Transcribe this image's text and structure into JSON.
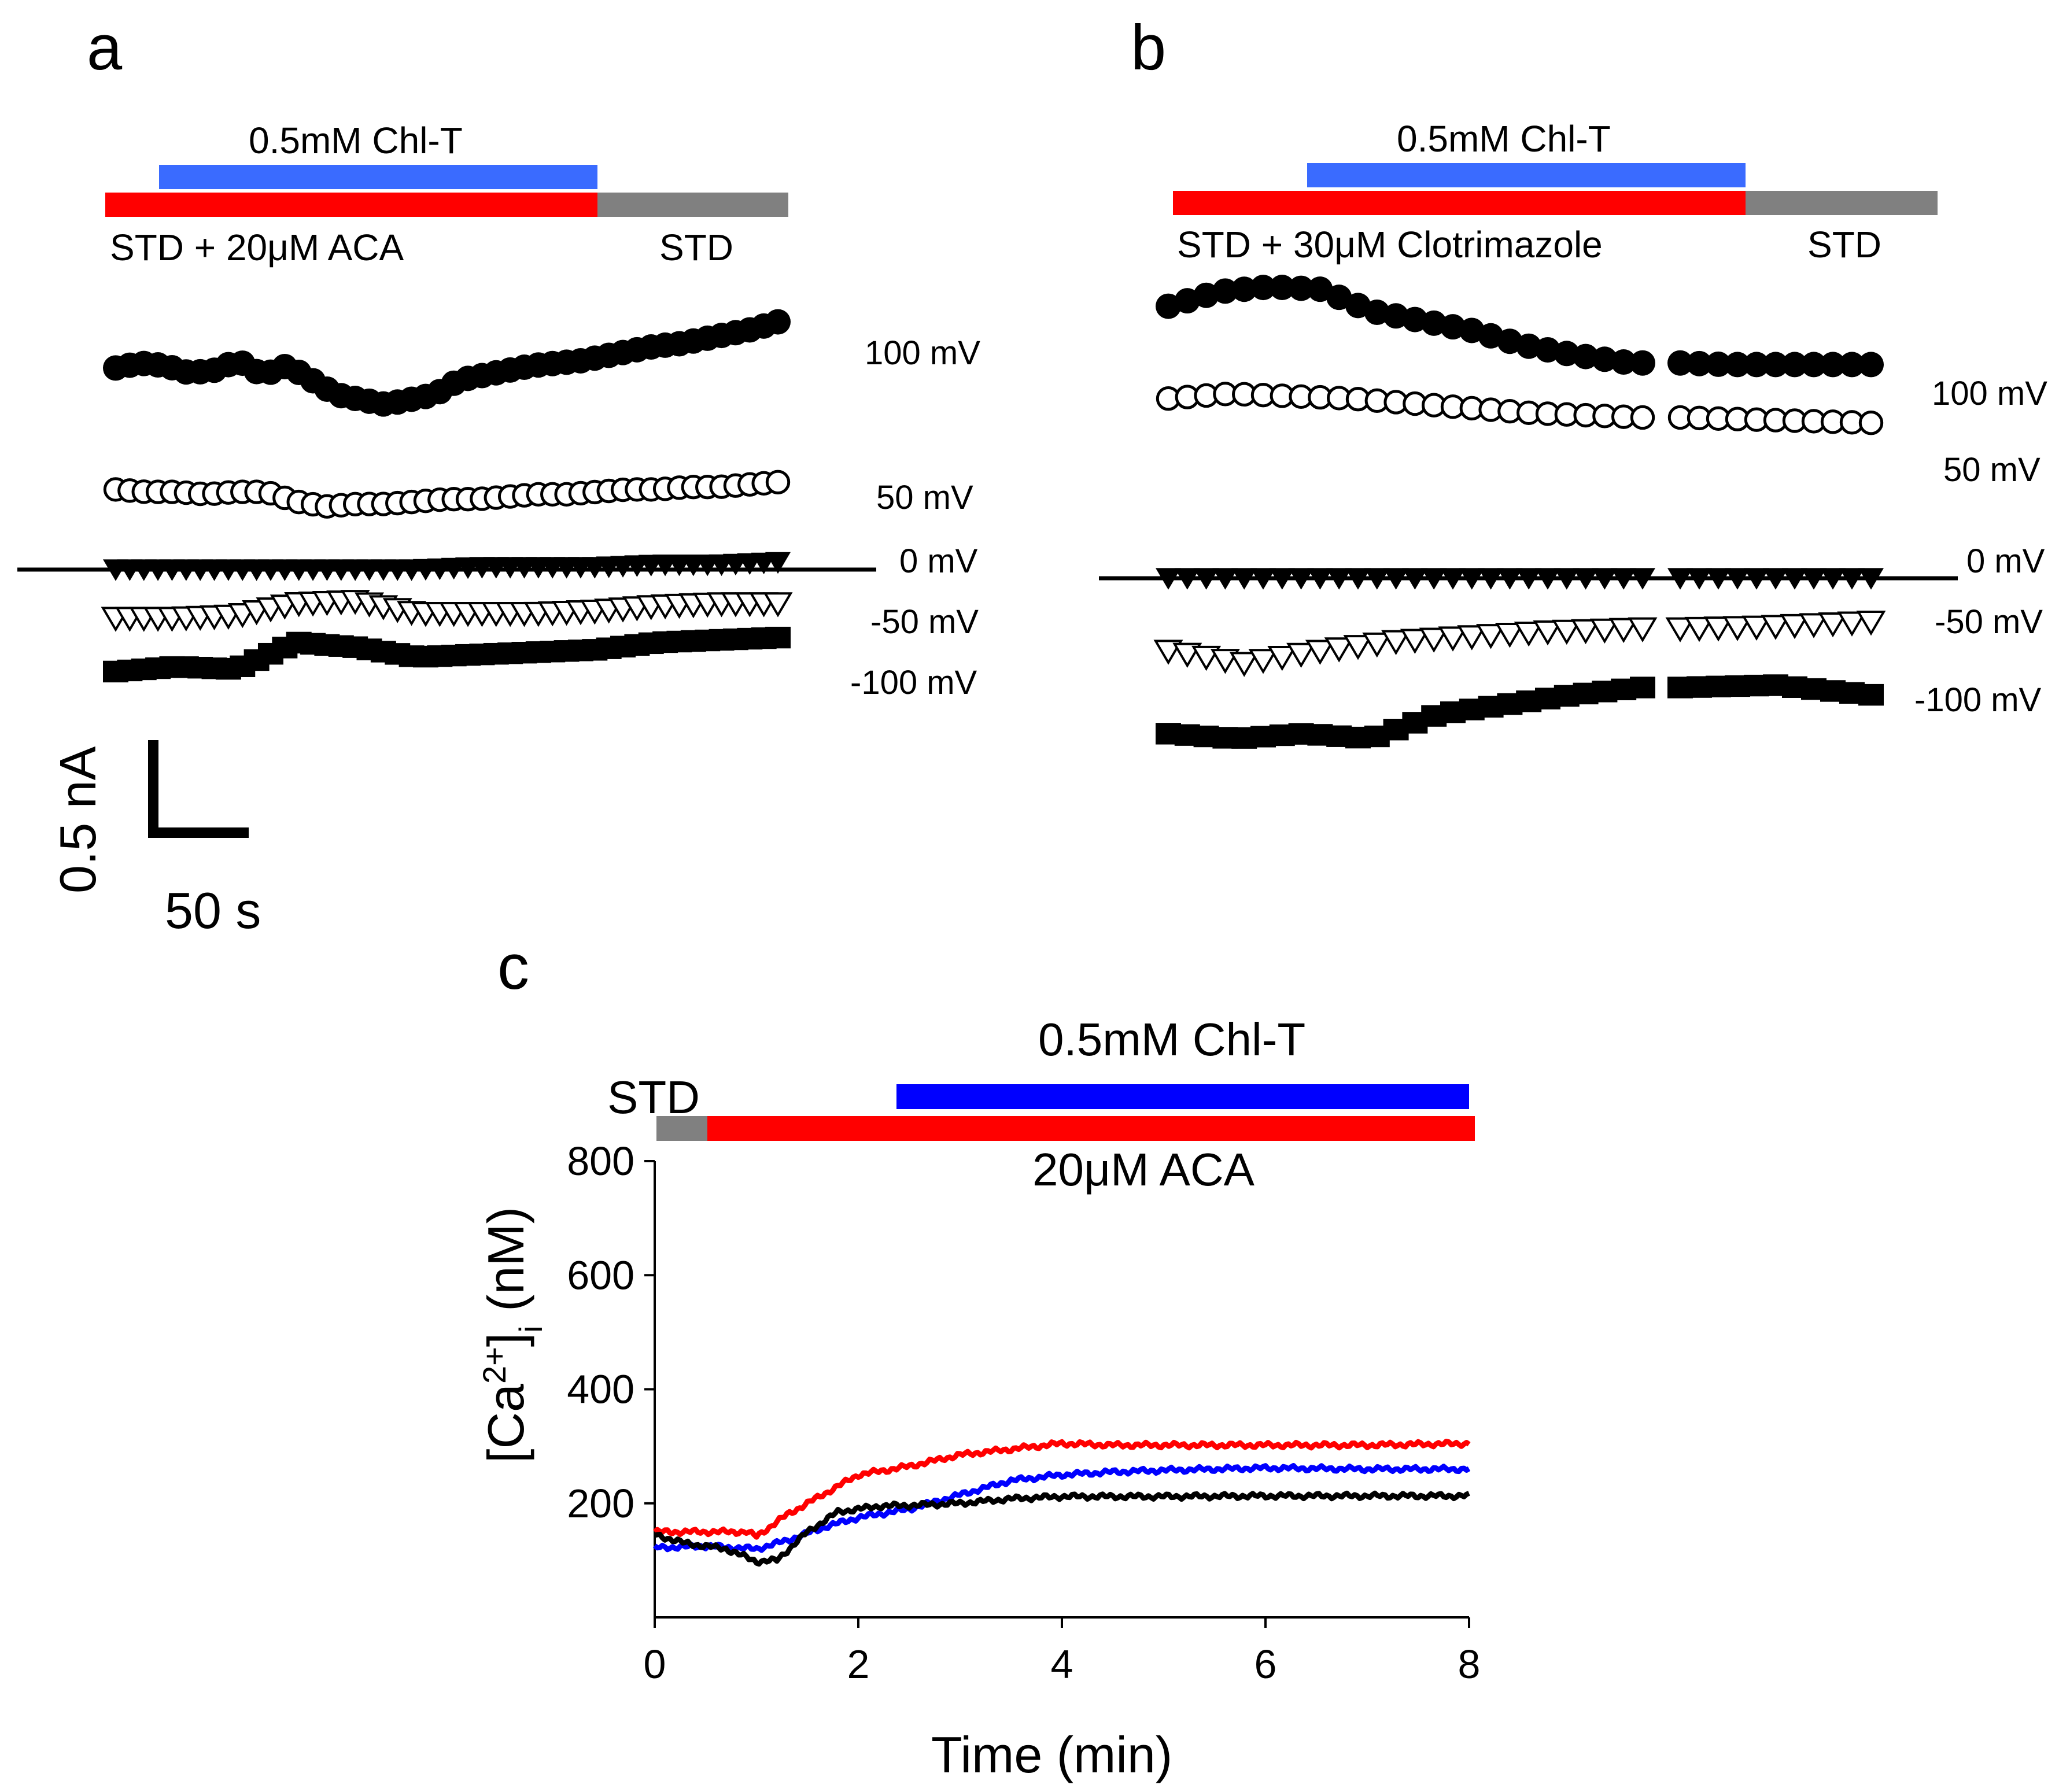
{
  "panels": {
    "a": {
      "label": "a",
      "chl_label": "0.5mM Chl-T",
      "drug_label": "STD + 20μM ACA",
      "std_label": "STD",
      "voltages": [
        "100 mV",
        "50 mV",
        "0 mV",
        "-50 mV",
        "-100 mV"
      ]
    },
    "b": {
      "label": "b",
      "chl_label": "0.5mM Chl-T",
      "drug_label": "STD + 30μM Clotrimazole",
      "std_label": "STD",
      "voltages": [
        "100 mV",
        "50 mV",
        "0 mV",
        "-50 mV",
        "-100 mV"
      ]
    },
    "c": {
      "label": "c",
      "std_label": "STD",
      "chl_label": "0.5mM Chl-T",
      "drug_label": "20μM ACA"
    }
  },
  "scale_bar": {
    "current": "0.5 nA",
    "time": "50 s"
  },
  "colors": {
    "chl": "#3a6bff",
    "chl_c": "#0000ff",
    "drug": "#ff0000",
    "std": "#808080"
  },
  "chart_data": [
    {
      "type": "scatter",
      "title": "a",
      "xlabel": "",
      "ylabel": "",
      "note": "current traces vs time during Chl-T application; values in nA relative to 0 mV baseline",
      "series": [
        {
          "name": "100 mV",
          "marker": "filled-circle",
          "values": [
            0.83,
            0.85,
            0.84,
            0.81,
            0.82,
            0.86,
            0.8,
            0.84,
            0.78,
            0.72,
            0.7,
            0.68,
            0.7,
            0.72,
            0.78,
            0.8,
            0.82,
            0.84,
            0.85,
            0.86,
            0.88,
            0.9,
            0.92,
            0.93,
            0.95,
            0.97,
            0.99,
            1.02
          ]
        },
        {
          "name": "50 mV",
          "marker": "open-circle",
          "values": [
            0.33,
            0.32,
            0.32,
            0.31,
            0.32,
            0.32,
            0.28,
            0.26,
            0.27,
            0.27,
            0.28,
            0.29,
            0.29,
            0.3,
            0.31,
            0.31,
            0.32,
            0.33,
            0.33,
            0.34,
            0.34,
            0.35,
            0.36
          ]
        },
        {
          "name": "0 mV",
          "marker": "filled-triangle-down",
          "values": [
            0.0,
            0.0,
            0.0,
            0.0,
            0.0,
            0.0,
            0.01,
            0.01,
            0.01,
            0.02,
            0.02,
            0.03
          ]
        },
        {
          "name": "-50 mV",
          "marker": "open-triangle-down",
          "values": [
            -0.2,
            -0.2,
            -0.19,
            -0.14,
            -0.13,
            -0.18,
            -0.18,
            -0.18,
            -0.17,
            -0.15,
            -0.14,
            -0.14
          ]
        },
        {
          "name": "-100 mV",
          "marker": "filled-square",
          "values": [
            -0.42,
            -0.4,
            -0.41,
            -0.3,
            -0.32,
            -0.36,
            -0.35,
            -0.34,
            -0.33,
            -0.3,
            -0.29,
            -0.28
          ]
        }
      ]
    },
    {
      "type": "scatter",
      "title": "b",
      "xlabel": "",
      "ylabel": "",
      "note": "current traces vs time during Chl-T application with Clotrimazole",
      "series": [
        {
          "name": "100 mV",
          "marker": "filled-circle",
          "values": [
            1.12,
            1.18,
            1.2,
            1.19,
            1.1,
            1.06,
            1.02,
            0.96,
            0.92,
            0.89,
            0.88,
            0.88,
            0.88
          ]
        },
        {
          "name": "50 mV",
          "marker": "open-circle",
          "values": [
            0.74,
            0.76,
            0.75,
            0.74,
            0.72,
            0.7,
            0.68,
            0.67,
            0.66,
            0.65,
            0.64
          ]
        },
        {
          "name": "0 mV",
          "marker": "filled-triangle-down",
          "values": [
            0.0,
            0.0,
            0.0,
            0.0,
            0.0,
            0.0,
            0.0
          ]
        },
        {
          "name": "-50 mV",
          "marker": "open-triangle-down",
          "values": [
            -0.3,
            -0.35,
            -0.3,
            -0.26,
            -0.24,
            -0.22,
            -0.21,
            -0.2,
            -0.18
          ]
        },
        {
          "name": "-100 mV",
          "marker": "filled-square",
          "values": [
            -0.64,
            -0.66,
            -0.64,
            -0.66,
            -0.56,
            -0.52,
            -0.48,
            -0.45,
            -0.44,
            -0.48
          ]
        }
      ]
    },
    {
      "type": "line",
      "title": "c",
      "xlabel": "Time (min)",
      "ylabel": "[Ca2+]i (nM)",
      "xlim": [
        0,
        8
      ],
      "ylim": [
        0,
        800
      ],
      "xticks": [
        0,
        2,
        4,
        6,
        8
      ],
      "yticks": [
        200,
        400,
        600,
        800
      ],
      "series": [
        {
          "name": "red",
          "color": "#ff0000",
          "x": [
            0,
            0.5,
            0.9,
            1.0,
            1.3,
            1.7,
            2.0,
            2.5,
            3.0,
            3.5,
            4.0,
            4.5,
            5.0,
            6.0,
            7.0,
            8.0
          ],
          "y": [
            150,
            150,
            150,
            142,
            180,
            220,
            250,
            265,
            285,
            295,
            305,
            302,
            302,
            302,
            302,
            305
          ]
        },
        {
          "name": "blue",
          "color": "#0000ff",
          "x": [
            0,
            0.5,
            1.0,
            1.3,
            1.7,
            2.0,
            2.5,
            3.0,
            3.5,
            4.0,
            4.5,
            5.0,
            6.0,
            7.0,
            8.0
          ],
          "y": [
            122,
            125,
            120,
            135,
            160,
            175,
            190,
            215,
            240,
            250,
            255,
            258,
            262,
            260,
            260
          ]
        },
        {
          "name": "black",
          "color": "#000000",
          "x": [
            0,
            0.3,
            0.7,
            1.0,
            1.2,
            1.5,
            1.8,
            2.2,
            2.6,
            3.0,
            3.5,
            4.0,
            5.0,
            6.0,
            7.0,
            8.0
          ],
          "y": [
            145,
            130,
            120,
            98,
            100,
            150,
            185,
            195,
            197,
            200,
            208,
            212,
            212,
            213,
            213,
            213
          ]
        }
      ]
    }
  ]
}
